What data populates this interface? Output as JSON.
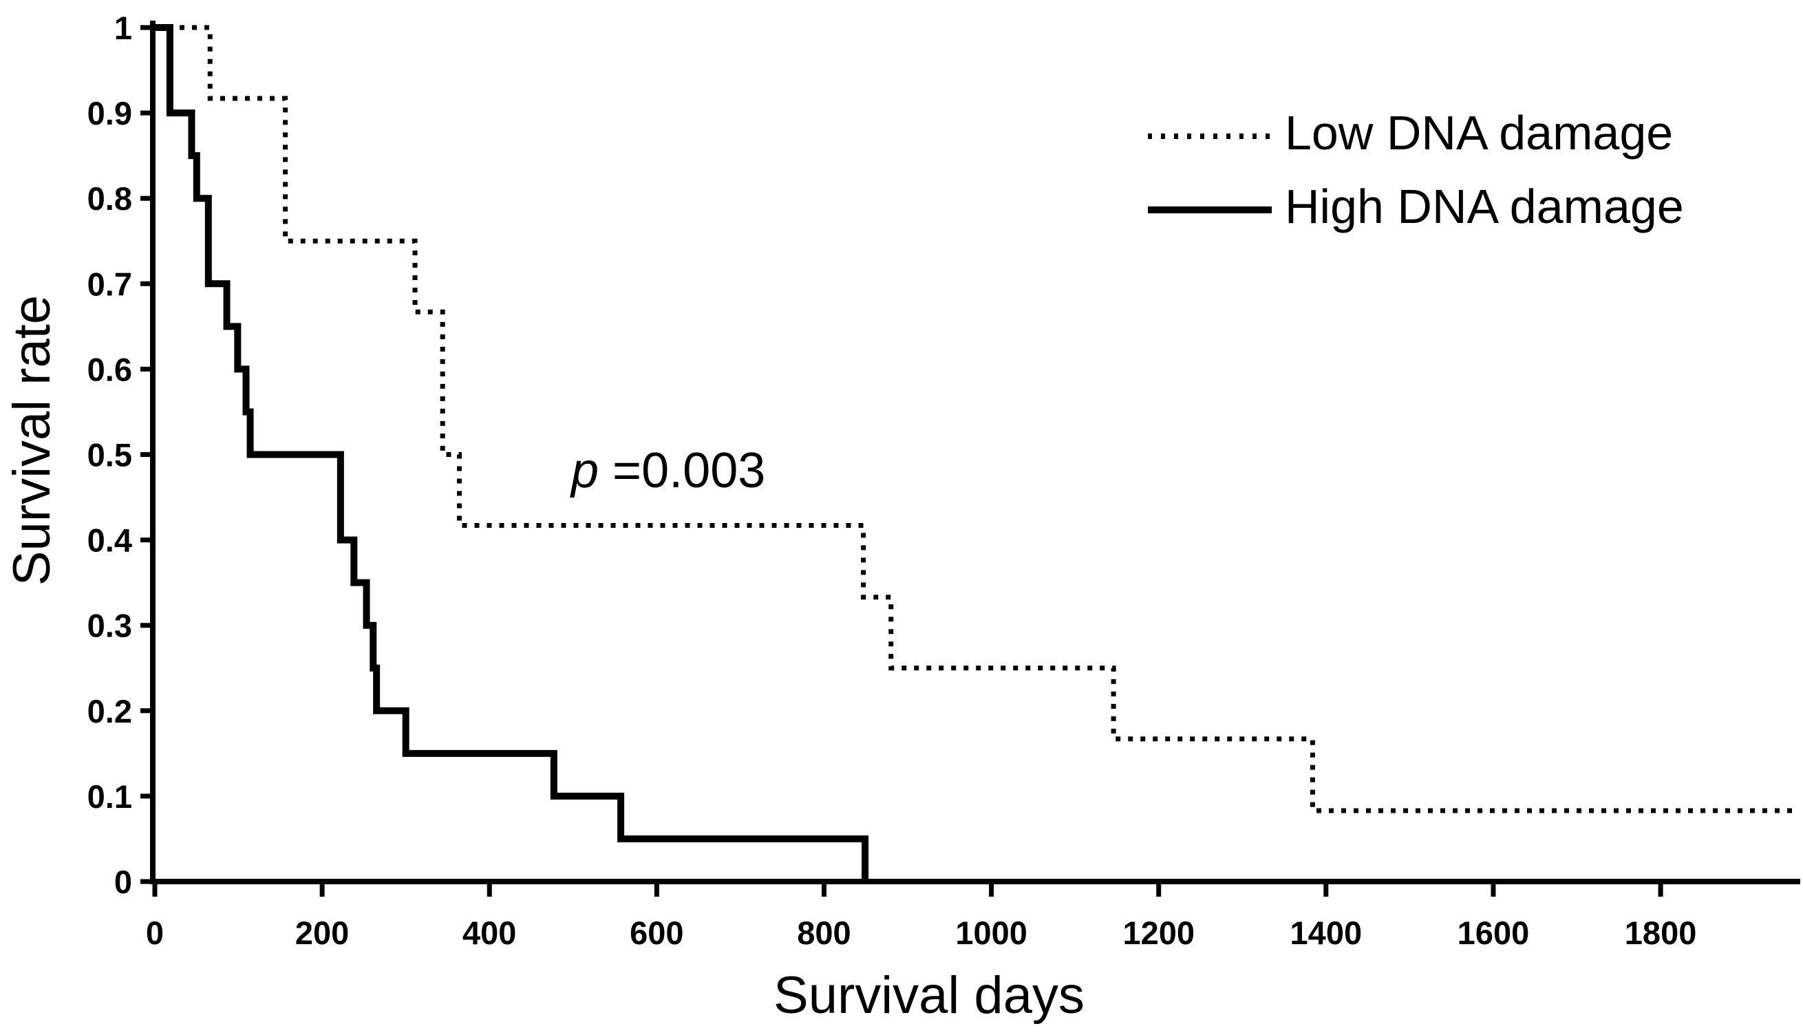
{
  "figure": {
    "background_color": "#ffffff",
    "line_color": "#000000"
  },
  "y_axis": {
    "title": "Survival rate",
    "tick_labels": [
      "1",
      "0.9",
      "0.8",
      "0.7",
      "0.6",
      "0.5",
      "0.4",
      "0.3",
      "0.2",
      "0.1",
      "0"
    ],
    "tick_values": [
      1,
      0.9,
      0.8,
      0.7,
      0.6,
      0.5,
      0.4,
      0.3,
      0.2,
      0.1,
      0
    ]
  },
  "x_axis": {
    "title": "Survival days",
    "tick_labels": [
      "0",
      "200",
      "400",
      "600",
      "800",
      "1000",
      "1200",
      "1400",
      "1600",
      "1800"
    ],
    "tick_values": [
      0,
      200,
      400,
      600,
      800,
      1000,
      1200,
      1400,
      1600,
      1800
    ]
  },
  "annotation": {
    "p_label": "p",
    "p_value": " =0.003"
  },
  "legend": [
    {
      "label": "Low DNA damage",
      "style": "dotted"
    },
    {
      "label": "High DNA damage",
      "style": "solid"
    }
  ],
  "chart_data": {
    "type": "line",
    "subtype": "kaplan-meier-step-curves",
    "title": "",
    "xlabel": "Survival days",
    "ylabel": "Survival rate",
    "xlim": [
      0,
      1966
    ],
    "ylim": [
      0,
      1
    ],
    "grid": false,
    "legend_position": "top-right",
    "annotation_text": "p =0.003",
    "series": [
      {
        "name": "Low DNA damage",
        "line": "dotted",
        "steps": [
          [
            0,
            1.0
          ],
          [
            66,
            0.917
          ],
          [
            156,
            0.75
          ],
          [
            311,
            0.667
          ],
          [
            344,
            0.5
          ],
          [
            364,
            0.417
          ],
          [
            847,
            0.333
          ],
          [
            880,
            0.25
          ],
          [
            1146,
            0.167
          ],
          [
            1384,
            0.083
          ]
        ],
        "end_x": 1966
      },
      {
        "name": "High DNA damage",
        "line": "solid",
        "steps": [
          [
            0,
            1.0
          ],
          [
            18,
            0.9
          ],
          [
            44,
            0.85
          ],
          [
            50,
            0.8
          ],
          [
            64,
            0.7
          ],
          [
            86,
            0.65
          ],
          [
            99,
            0.6
          ],
          [
            109,
            0.55
          ],
          [
            114,
            0.5
          ],
          [
            222,
            0.4
          ],
          [
            238,
            0.35
          ],
          [
            253,
            0.3
          ],
          [
            261,
            0.25
          ],
          [
            265,
            0.2
          ],
          [
            300,
            0.15
          ],
          [
            477,
            0.1
          ],
          [
            557,
            0.05
          ],
          [
            849,
            0.0
          ]
        ],
        "end_x": 849
      }
    ]
  }
}
